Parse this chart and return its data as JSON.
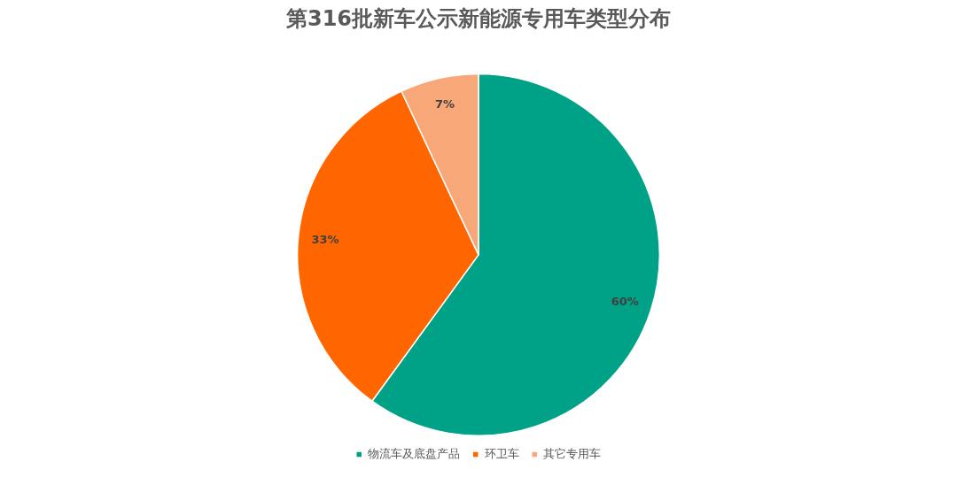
{
  "chart_data": {
    "type": "pie",
    "title": "第316批新车公示新能源专用车类型分布",
    "categories": [
      "物流车及底盘产品",
      "环卫车",
      "其它专用车"
    ],
    "values": [
      60,
      33,
      7
    ],
    "colors": [
      "#00a287",
      "#ff6600",
      "#f8a878"
    ],
    "value_labels": [
      "60%",
      "33%",
      "7%"
    ],
    "legend": "bottom"
  }
}
